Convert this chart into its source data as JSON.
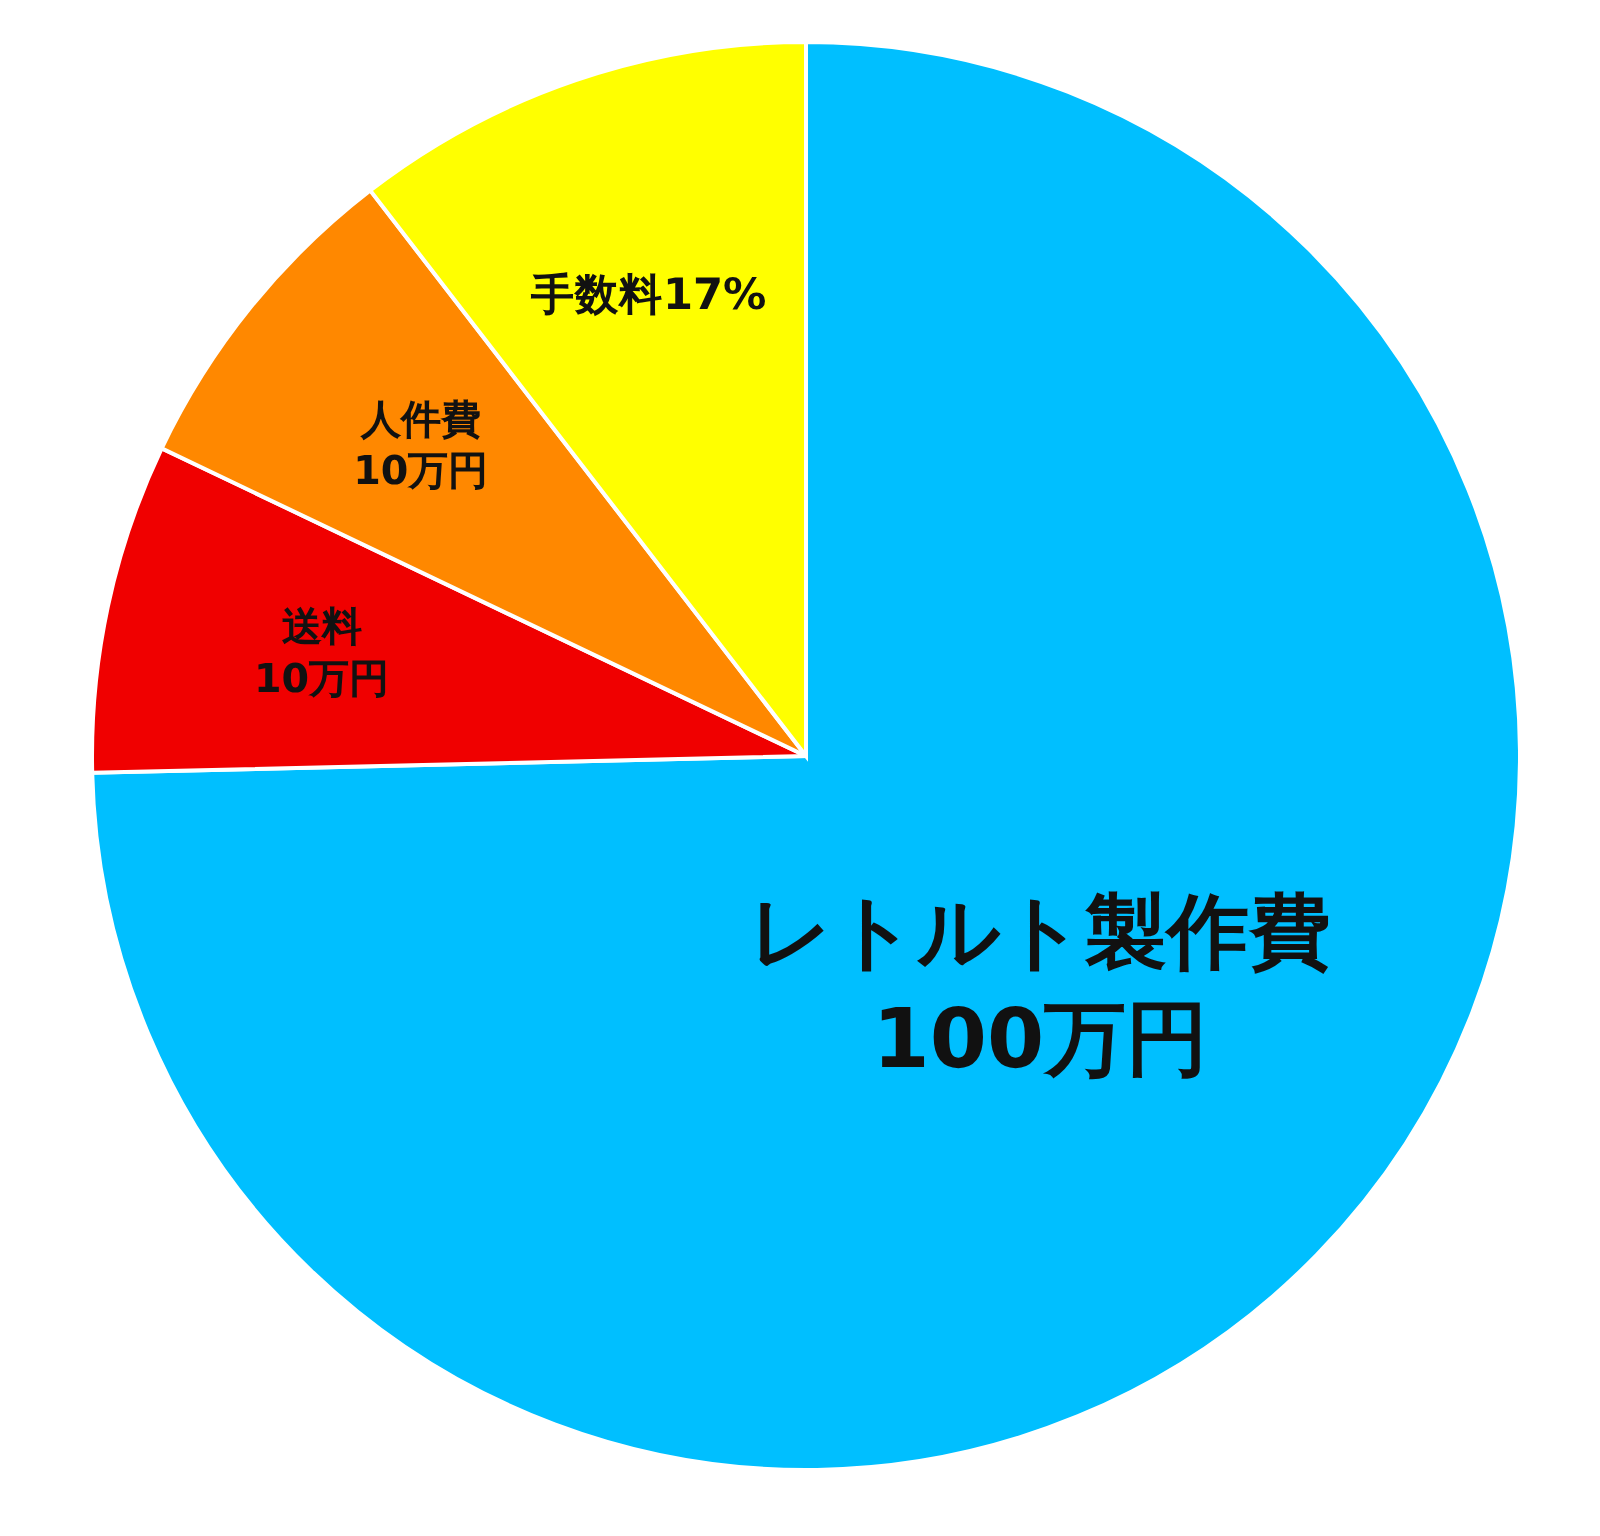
{
  "chart_data": {
    "type": "pie",
    "categories": [
      "レトルト製作費",
      "送料",
      "人件費",
      "手数料17%"
    ],
    "values": [
      100,
      10,
      10,
      14
    ],
    "value_labels": [
      "100万円",
      "10万円",
      "10万円",
      null
    ],
    "colors": [
      "#00bfff",
      "#f00000",
      "#ff8800",
      "#ffff00"
    ]
  }
}
